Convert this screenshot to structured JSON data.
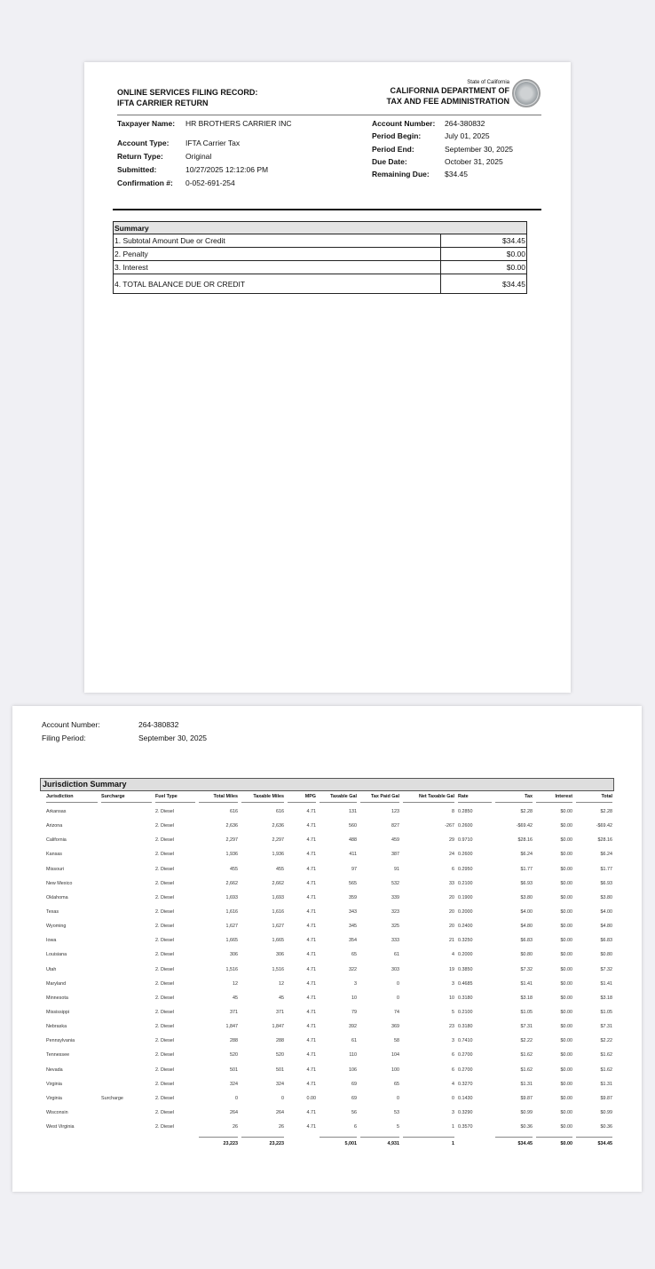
{
  "page1": {
    "title_line1": "ONLINE SERVICES FILING RECORD:",
    "title_line2": "IFTA CARRIER RETURN",
    "agency_state": "State of California",
    "agency_line1": "CALIFORNIA DEPARTMENT OF",
    "agency_line2": "TAX AND FEE ADMINISTRATION",
    "left_fields": [
      {
        "label": "Taxpayer Name:",
        "value": "HR BROTHERS CARRIER INC"
      },
      {
        "label": "Account Type:",
        "value": "IFTA Carrier Tax"
      },
      {
        "label": "Return Type:",
        "value": "Original"
      },
      {
        "label": "Submitted:",
        "value": "10/27/2025 12:12:06 PM"
      },
      {
        "label": "Confirmation #:",
        "value": "0-052-691-254"
      }
    ],
    "right_fields": [
      {
        "label": "Account Number:",
        "value": "264-380832"
      },
      {
        "label": "Period Begin:",
        "value": "July 01, 2025"
      },
      {
        "label": "Period End:",
        "value": "September 30, 2025"
      },
      {
        "label": "Due Date:",
        "value": "October 31, 2025"
      },
      {
        "label": "Remaining Due:",
        "value": "$34.45"
      }
    ],
    "summary": {
      "header": "Summary",
      "rows": [
        {
          "label": "1. Subtotal Amount Due or Credit",
          "value": "$34.45"
        },
        {
          "label": "2. Penalty",
          "value": "$0.00"
        },
        {
          "label": "3. Interest",
          "value": "$0.00"
        },
        {
          "label": "4. TOTAL BALANCE DUE OR CREDIT",
          "value": "$34.45"
        }
      ]
    }
  },
  "page2": {
    "account_label": "Account Number:",
    "account_value": "264-380832",
    "period_label": "Filing Period:",
    "period_value": "September 30, 2025",
    "section_title": "Jurisdiction Summary",
    "columns": [
      "Jurisdiction",
      "Surcharge",
      "Fuel Type",
      "Total Miles",
      "Taxable Miles",
      "MPG",
      "Taxable Gal",
      "Tax Paid Gal",
      "Net Taxable Gal",
      "Rate",
      "Tax",
      "Interest",
      "Total"
    ],
    "rows": [
      [
        "Arkansas",
        "",
        "2. Diesel",
        "616",
        "616",
        "4.71",
        "131",
        "123",
        "8",
        "0.2850",
        "$2.28",
        "$0.00",
        "$2.28"
      ],
      [
        "Arizona",
        "",
        "2. Diesel",
        "2,636",
        "2,636",
        "4.71",
        "560",
        "827",
        "-267",
        "0.2600",
        "-$69.42",
        "$0.00",
        "-$69.42"
      ],
      [
        "California",
        "",
        "2. Diesel",
        "2,297",
        "2,297",
        "4.71",
        "488",
        "459",
        "29",
        "0.9710",
        "$28.16",
        "$0.00",
        "$28.16"
      ],
      [
        "Kansas",
        "",
        "2. Diesel",
        "1,936",
        "1,936",
        "4.71",
        "411",
        "387",
        "24",
        "0.2600",
        "$6.24",
        "$0.00",
        "$6.24"
      ],
      [
        "Missouri",
        "",
        "2. Diesel",
        "455",
        "455",
        "4.71",
        "97",
        "91",
        "6",
        "0.2950",
        "$1.77",
        "$0.00",
        "$1.77"
      ],
      [
        "New Mexico",
        "",
        "2. Diesel",
        "2,662",
        "2,662",
        "4.71",
        "565",
        "532",
        "33",
        "0.2100",
        "$6.93",
        "$0.00",
        "$6.93"
      ],
      [
        "Oklahoma",
        "",
        "2. Diesel",
        "1,693",
        "1,693",
        "4.71",
        "359",
        "339",
        "20",
        "0.1900",
        "$3.80",
        "$0.00",
        "$3.80"
      ],
      [
        "Texas",
        "",
        "2. Diesel",
        "1,616",
        "1,616",
        "4.71",
        "343",
        "323",
        "20",
        "0.2000",
        "$4.00",
        "$0.00",
        "$4.00"
      ],
      [
        "Wyoming",
        "",
        "2. Diesel",
        "1,627",
        "1,627",
        "4.71",
        "345",
        "325",
        "20",
        "0.2400",
        "$4.80",
        "$0.00",
        "$4.80"
      ],
      [
        "Iowa",
        "",
        "2. Diesel",
        "1,665",
        "1,665",
        "4.71",
        "354",
        "333",
        "21",
        "0.3250",
        "$6.83",
        "$0.00",
        "$6.83"
      ],
      [
        "Louisiana",
        "",
        "2. Diesel",
        "306",
        "306",
        "4.71",
        "65",
        "61",
        "4",
        "0.2000",
        "$0.80",
        "$0.00",
        "$0.80"
      ],
      [
        "Utah",
        "",
        "2. Diesel",
        "1,516",
        "1,516",
        "4.71",
        "322",
        "303",
        "19",
        "0.3850",
        "$7.32",
        "$0.00",
        "$7.32"
      ],
      [
        "Maryland",
        "",
        "2. Diesel",
        "12",
        "12",
        "4.71",
        "3",
        "0",
        "3",
        "0.4685",
        "$1.41",
        "$0.00",
        "$1.41"
      ],
      [
        "Minnesota",
        "",
        "2. Diesel",
        "45",
        "45",
        "4.71",
        "10",
        "0",
        "10",
        "0.3180",
        "$3.18",
        "$0.00",
        "$3.18"
      ],
      [
        "Mississippi",
        "",
        "2. Diesel",
        "371",
        "371",
        "4.71",
        "79",
        "74",
        "5",
        "0.2100",
        "$1.05",
        "$0.00",
        "$1.05"
      ],
      [
        "Nebraska",
        "",
        "2. Diesel",
        "1,847",
        "1,847",
        "4.71",
        "392",
        "369",
        "23",
        "0.3180",
        "$7.31",
        "$0.00",
        "$7.31"
      ],
      [
        "Pennsylvania",
        "",
        "2. Diesel",
        "288",
        "288",
        "4.71",
        "61",
        "58",
        "3",
        "0.7410",
        "$2.22",
        "$0.00",
        "$2.22"
      ],
      [
        "Tennessee",
        "",
        "2. Diesel",
        "520",
        "520",
        "4.71",
        "110",
        "104",
        "6",
        "0.2700",
        "$1.62",
        "$0.00",
        "$1.62"
      ],
      [
        "Nevada",
        "",
        "2. Diesel",
        "501",
        "501",
        "4.71",
        "106",
        "100",
        "6",
        "0.2700",
        "$1.62",
        "$0.00",
        "$1.62"
      ],
      [
        "Virginia",
        "",
        "2. Diesel",
        "324",
        "324",
        "4.71",
        "69",
        "65",
        "4",
        "0.3270",
        "$1.31",
        "$0.00",
        "$1.31"
      ],
      [
        "Virginia",
        "Surcharge",
        "2. Diesel",
        "0",
        "0",
        "0.00",
        "69",
        "0",
        "0",
        "0.1430",
        "$9.87",
        "$0.00",
        "$9.87"
      ],
      [
        "Wisconsin",
        "",
        "2. Diesel",
        "264",
        "264",
        "4.71",
        "56",
        "53",
        "3",
        "0.3290",
        "$0.99",
        "$0.00",
        "$0.99"
      ],
      [
        "West Virginia",
        "",
        "2. Diesel",
        "26",
        "26",
        "4.71",
        "6",
        "5",
        "1",
        "0.3570",
        "$0.36",
        "$0.00",
        "$0.36"
      ]
    ],
    "totals": [
      "",
      "",
      "",
      "23,223",
      "23,223",
      "",
      "5,001",
      "4,931",
      "1",
      "",
      "$34.45",
      "$0.00",
      "$34.45"
    ]
  }
}
